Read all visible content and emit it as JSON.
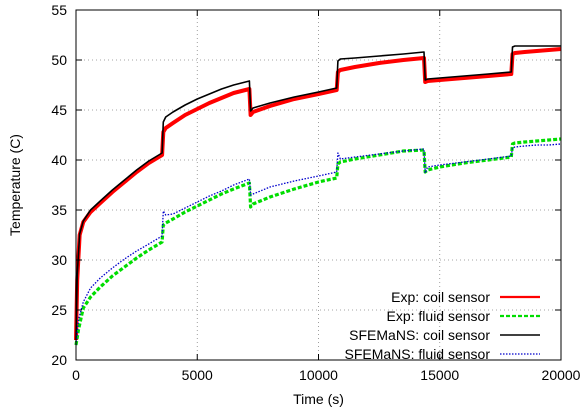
{
  "chart_data": {
    "type": "line",
    "xlabel": "Time (s)",
    "ylabel": "Temperature (C)",
    "xlim": [
      0,
      20000
    ],
    "ylim": [
      20,
      55
    ],
    "xticks": [
      0,
      5000,
      10000,
      15000,
      20000
    ],
    "yticks": [
      20,
      25,
      30,
      35,
      40,
      45,
      50,
      55
    ],
    "grid": true,
    "grid_style": "dotted",
    "legend_position": "bottom-right",
    "series": [
      {
        "name": "Exp: coil sensor",
        "color": "#ff0000",
        "style": "solid-thick",
        "x": [
          0,
          50,
          150,
          300,
          600,
          1000,
          1500,
          2000,
          2500,
          3000,
          3550,
          3600,
          3700,
          4000,
          4500,
          5000,
          5500,
          6000,
          6500,
          7150,
          7200,
          7300,
          8000,
          9000,
          10000,
          10750,
          10800,
          10900,
          11500,
          12500,
          13500,
          14350,
          14400,
          14500,
          15000,
          16000,
          17000,
          17950,
          18000,
          18100,
          18500,
          19000,
          19500,
          20000
        ],
        "y": [
          22,
          28,
          32.5,
          33.8,
          34.8,
          35.7,
          36.8,
          37.8,
          38.8,
          39.7,
          40.5,
          42.8,
          43.2,
          43.7,
          44.5,
          45.1,
          45.7,
          46.2,
          46.7,
          47.1,
          44.5,
          44.8,
          45.4,
          46.1,
          46.6,
          47.0,
          48.8,
          49.0,
          49.3,
          49.7,
          50.0,
          50.2,
          47.8,
          47.9,
          48.0,
          48.2,
          48.4,
          48.6,
          50.6,
          50.7,
          50.8,
          50.9,
          51.0,
          51.1
        ]
      },
      {
        "name": "Exp: fluid sensor",
        "color": "#00dd00",
        "style": "dashed",
        "x": [
          0,
          100,
          300,
          600,
          1000,
          1500,
          2000,
          2500,
          3000,
          3550,
          3600,
          3700,
          4000,
          4500,
          5000,
          5500,
          6000,
          6500,
          7150,
          7200,
          7300,
          8000,
          9000,
          10000,
          10750,
          10800,
          10900,
          11500,
          12500,
          13500,
          14350,
          14400,
          14500,
          15000,
          16000,
          17000,
          17950,
          18000,
          18100,
          18500,
          19000,
          19500,
          20000
        ],
        "y": [
          21.5,
          23,
          25.2,
          26.3,
          27.3,
          28.4,
          29.3,
          30.2,
          31.0,
          31.8,
          33.5,
          33.7,
          34.1,
          34.8,
          35.4,
          36.0,
          36.6,
          37.1,
          37.7,
          35.3,
          35.6,
          36.3,
          37.1,
          37.8,
          38.2,
          39.6,
          39.8,
          40.1,
          40.5,
          40.9,
          41.0,
          38.8,
          39.0,
          39.3,
          39.7,
          40.0,
          40.3,
          41.6,
          41.7,
          41.8,
          41.9,
          42.0,
          42.1
        ]
      },
      {
        "name": "SFEMaNS: coil sensor",
        "color": "#000000",
        "style": "solid",
        "x": [
          0,
          50,
          150,
          300,
          600,
          1000,
          1500,
          2000,
          2500,
          3000,
          3550,
          3600,
          3700,
          4000,
          4500,
          5000,
          5500,
          6000,
          6500,
          7150,
          7200,
          7300,
          8000,
          9000,
          10000,
          10750,
          10800,
          10900,
          11500,
          12500,
          13500,
          14350,
          14400,
          14500,
          15000,
          16000,
          17000,
          17950,
          18000,
          18100,
          18500,
          19000,
          19500,
          20000
        ],
        "y": [
          22,
          28.5,
          32.6,
          33.9,
          35.0,
          35.9,
          37.0,
          38.0,
          39.0,
          39.9,
          40.7,
          43.8,
          44.3,
          44.8,
          45.5,
          46.1,
          46.6,
          47.1,
          47.5,
          47.9,
          44.9,
          45.2,
          45.7,
          46.3,
          46.8,
          47.2,
          49.9,
          50.1,
          50.2,
          50.4,
          50.6,
          50.8,
          48.0,
          48.1,
          48.2,
          48.4,
          48.6,
          48.8,
          51.3,
          51.4,
          51.4,
          51.4,
          51.4,
          51.4
        ]
      },
      {
        "name": "SFEMaNS: fluid sensor",
        "color": "#0000cc",
        "style": "dotted",
        "x": [
          0,
          100,
          300,
          600,
          1000,
          1500,
          2000,
          2500,
          3000,
          3550,
          3600,
          3700,
          4000,
          4500,
          5000,
          5500,
          6000,
          6500,
          7150,
          7200,
          7300,
          8000,
          9000,
          10000,
          10750,
          10800,
          10900,
          11500,
          12500,
          13500,
          14350,
          14400,
          14500,
          15000,
          16000,
          17000,
          17950,
          18000,
          18100,
          18500,
          19000,
          19500,
          20000
        ],
        "y": [
          21.5,
          24,
          25.8,
          27.2,
          28.2,
          29.2,
          30.1,
          30.9,
          31.6,
          32.4,
          34.9,
          34.5,
          34.6,
          35.2,
          35.8,
          36.4,
          36.9,
          37.5,
          38.1,
          36.5,
          36.6,
          37.3,
          37.9,
          38.4,
          38.8,
          40.7,
          40.1,
          40.3,
          40.6,
          40.9,
          41.1,
          38.7,
          39.3,
          39.5,
          39.8,
          40.1,
          40.4,
          41.2,
          41.3,
          41.4,
          41.5,
          41.5,
          41.6
        ]
      }
    ]
  }
}
